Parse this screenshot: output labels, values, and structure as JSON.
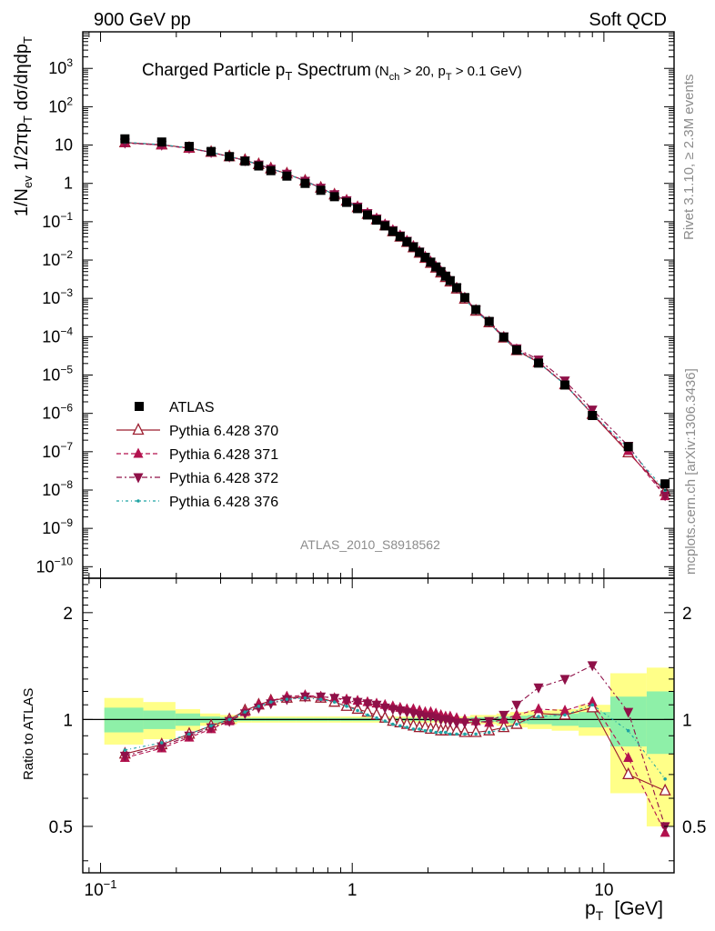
{
  "header": {
    "left": "900 GeV pp",
    "right": "Soft QCD"
  },
  "side": {
    "rivet": "Rivet 3.1.10, ≥ 2.3M events",
    "mcplots": "mcplots.cern.ch [arXiv:1306.3436]"
  },
  "watermark": "ATLAS_2010_S8918562",
  "colors": {
    "atlas": "#000000",
    "p370": "#9c1c2e",
    "p371": "#b3124e",
    "p372": "#8f1048",
    "p376": "#1fa3a3",
    "band_yellow": "#ffff88",
    "band_green": "#8ef0a8"
  },
  "chart_data": [
    {
      "type": "line",
      "title": "Charged Particle pT Spectrum",
      "title_parts": {
        "main": "Charged Particle p",
        "main_sub": "T",
        "main_tail": " Spectrum",
        "cond": "(N",
        "cond_sub1": "ch",
        "cond_mid": " > 20, p",
        "cond_sub2": "T",
        "cond_tail": " > 0.1 GeV)"
      },
      "ylabel": "1/Nev 1/2πpT dσ/dηdpT",
      "ylabel_parts": {
        "a": "1/N",
        "a_sub": "ev",
        "b": " 1/2πp",
        "b_sub": "T",
        "c": " dσ/dηdp",
        "c_sub": "T"
      },
      "xscale": "log",
      "yscale": "log",
      "xlim": [
        0.085,
        19
      ],
      "ylim": [
        5e-11,
        9000
      ],
      "yticks": [
        {
          "v": 1e-10,
          "base": "10",
          "exp": "−10"
        },
        {
          "v": 1e-09,
          "base": "10",
          "exp": "−9"
        },
        {
          "v": 1e-08,
          "base": "10",
          "exp": "−8"
        },
        {
          "v": 1e-07,
          "base": "10",
          "exp": "−7"
        },
        {
          "v": 1e-06,
          "base": "10",
          "exp": "−6"
        },
        {
          "v": 1e-05,
          "base": "10",
          "exp": "−5"
        },
        {
          "v": 0.0001,
          "base": "10",
          "exp": "−4"
        },
        {
          "v": 0.001,
          "base": "10",
          "exp": "−3"
        },
        {
          "v": 0.01,
          "base": "10",
          "exp": "−2"
        },
        {
          "v": 0.1,
          "base": "10",
          "exp": "−1"
        },
        {
          "v": 1,
          "base": "1",
          "exp": ""
        },
        {
          "v": 10,
          "base": "10",
          "exp": ""
        },
        {
          "v": 100,
          "base": "10",
          "exp": "2"
        },
        {
          "v": 1000,
          "base": "10",
          "exp": "3"
        }
      ],
      "legend": {
        "placement": "bottom-left",
        "entries": [
          "ATLAS",
          "Pythia 6.428 370",
          "Pythia 6.428 371",
          "Pythia 6.428 372",
          "Pythia 6.428 376"
        ]
      },
      "x": [
        0.125,
        0.175,
        0.225,
        0.275,
        0.325,
        0.375,
        0.425,
        0.475,
        0.55,
        0.65,
        0.75,
        0.85,
        0.95,
        1.05,
        1.15,
        1.25,
        1.35,
        1.45,
        1.55,
        1.65,
        1.75,
        1.85,
        1.95,
        2.05,
        2.15,
        2.25,
        2.35,
        2.45,
        2.6,
        2.8,
        3.1,
        3.5,
        4.0,
        4.5,
        5.5,
        7.0,
        9.0,
        12.5,
        17.5
      ],
      "atlas": [
        14.5,
        12.0,
        9.2,
        6.8,
        5.0,
        3.8,
        2.85,
        2.15,
        1.55,
        1.0,
        0.66,
        0.45,
        0.32,
        0.22,
        0.15,
        0.11,
        0.078,
        0.056,
        0.041,
        0.03,
        0.022,
        0.016,
        0.0118,
        0.0088,
        0.0066,
        0.005,
        0.0038,
        0.0029,
        0.0019,
        0.00105,
        0.00051,
        0.00025,
        9.8e-05,
        4.5e-05,
        2.05e-05,
        5.5e-06,
        8.8e-07,
        1.35e-07,
        1.45e-08
      ],
      "series": [
        {
          "name": "Pythia 6.428 370",
          "ratio": [
            0.8,
            0.85,
            0.91,
            0.96,
            1.0,
            1.06,
            1.1,
            1.13,
            1.15,
            1.16,
            1.15,
            1.12,
            1.09,
            1.07,
            1.05,
            1.03,
            1.01,
            0.99,
            0.98,
            0.97,
            0.96,
            0.95,
            0.95,
            0.94,
            0.94,
            0.93,
            0.93,
            0.93,
            0.93,
            0.92,
            0.92,
            0.93,
            0.95,
            0.97,
            1.04,
            1.03,
            1.08,
            0.7,
            0.63
          ]
        },
        {
          "name": "Pythia 6.428 371",
          "ratio": [
            0.78,
            0.83,
            0.89,
            0.94,
            0.99,
            1.05,
            1.1,
            1.13,
            1.16,
            1.17,
            1.16,
            1.15,
            1.14,
            1.13,
            1.12,
            1.11,
            1.1,
            1.09,
            1.08,
            1.07,
            1.07,
            1.06,
            1.05,
            1.05,
            1.04,
            1.03,
            1.02,
            1.02,
            1.01,
            1.0,
            0.99,
            0.98,
            1.0,
            1.03,
            1.07,
            1.06,
            1.12,
            0.78,
            0.48
          ]
        },
        {
          "name": "Pythia 6.428 372",
          "ratio": [
            0.79,
            0.84,
            0.9,
            0.95,
            0.99,
            1.04,
            1.08,
            1.11,
            1.14,
            1.16,
            1.16,
            1.15,
            1.13,
            1.12,
            1.11,
            1.1,
            1.08,
            1.07,
            1.06,
            1.05,
            1.04,
            1.03,
            1.02,
            1.02,
            1.01,
            1.0,
            1.0,
            0.99,
            0.98,
            0.98,
            0.98,
            0.99,
            1.03,
            1.1,
            1.23,
            1.3,
            1.42,
            1.05,
            0.5
          ]
        },
        {
          "name": "Pythia 6.428 376",
          "ratio": [
            0.82,
            0.86,
            0.91,
            0.96,
            1.0,
            1.05,
            1.09,
            1.12,
            1.14,
            1.15,
            1.14,
            1.12,
            1.09,
            1.06,
            1.03,
            1.01,
            0.99,
            0.97,
            0.96,
            0.95,
            0.94,
            0.94,
            0.93,
            0.93,
            0.92,
            0.92,
            0.92,
            0.91,
            0.91,
            0.91,
            0.91,
            0.92,
            0.94,
            0.97,
            1.02,
            1.03,
            1.1,
            0.93,
            0.68
          ]
        }
      ]
    },
    {
      "type": "line",
      "title": "",
      "ylabel": "Ratio to ATLAS",
      "xlabel": "pT [GeV]",
      "xlabel_parts": {
        "p": "p",
        "sub": "T",
        "unit": "[GeV]"
      },
      "xscale": "log",
      "yscale": "log",
      "xlim": [
        0.085,
        19
      ],
      "ylim": [
        0.37,
        2.5
      ],
      "yticks_left": [
        {
          "v": 0.5,
          "label": "0.5"
        },
        {
          "v": 1,
          "label": "1"
        },
        {
          "v": 2,
          "label": "2"
        }
      ],
      "yticks_right": [
        {
          "v": 0.5,
          "label": "0.5"
        },
        {
          "v": 1,
          "label": "1"
        },
        {
          "v": 2,
          "label": "2"
        }
      ],
      "xticks": [
        {
          "v": 0.1,
          "base": "10",
          "exp": "−1"
        },
        {
          "v": 1,
          "base": "1",
          "exp": ""
        },
        {
          "v": 10,
          "base": "10",
          "exp": ""
        }
      ],
      "band_yellow": [
        [
          0.85,
          1.15
        ],
        [
          0.88,
          1.12
        ],
        [
          0.93,
          1.07
        ],
        [
          0.96,
          1.04
        ],
        [
          0.97,
          1.03
        ],
        [
          0.98,
          1.02
        ],
        [
          0.98,
          1.02
        ],
        [
          0.98,
          1.02
        ],
        [
          0.98,
          1.02
        ],
        [
          0.98,
          1.02
        ],
        [
          0.98,
          1.02
        ],
        [
          0.98,
          1.02
        ],
        [
          0.98,
          1.02
        ],
        [
          0.98,
          1.02
        ],
        [
          0.98,
          1.02
        ],
        [
          0.98,
          1.02
        ],
        [
          0.98,
          1.02
        ],
        [
          0.98,
          1.02
        ],
        [
          0.98,
          1.02
        ],
        [
          0.98,
          1.02
        ],
        [
          0.98,
          1.02
        ],
        [
          0.98,
          1.02
        ],
        [
          0.98,
          1.02
        ],
        [
          0.98,
          1.02
        ],
        [
          0.98,
          1.02
        ],
        [
          0.98,
          1.02
        ],
        [
          0.98,
          1.02
        ],
        [
          0.98,
          1.02
        ],
        [
          0.98,
          1.02
        ],
        [
          0.98,
          1.02
        ],
        [
          0.97,
          1.03
        ],
        [
          0.97,
          1.03
        ],
        [
          0.96,
          1.04
        ],
        [
          0.95,
          1.05
        ],
        [
          0.94,
          1.06
        ],
        [
          0.93,
          1.07
        ],
        [
          0.9,
          1.1
        ],
        [
          0.62,
          1.35
        ],
        [
          0.5,
          1.4
        ]
      ],
      "band_green": [
        [
          0.92,
          1.08
        ],
        [
          0.94,
          1.06
        ],
        [
          0.96,
          1.04
        ],
        [
          0.98,
          1.02
        ],
        [
          0.985,
          1.015
        ],
        [
          0.99,
          1.01
        ],
        [
          0.99,
          1.01
        ],
        [
          0.99,
          1.01
        ],
        [
          0.99,
          1.01
        ],
        [
          0.99,
          1.01
        ],
        [
          0.99,
          1.01
        ],
        [
          0.99,
          1.01
        ],
        [
          0.99,
          1.01
        ],
        [
          0.99,
          1.01
        ],
        [
          0.99,
          1.01
        ],
        [
          0.99,
          1.01
        ],
        [
          0.99,
          1.01
        ],
        [
          0.99,
          1.01
        ],
        [
          0.99,
          1.01
        ],
        [
          0.99,
          1.01
        ],
        [
          0.99,
          1.01
        ],
        [
          0.99,
          1.01
        ],
        [
          0.99,
          1.01
        ],
        [
          0.99,
          1.01
        ],
        [
          0.99,
          1.01
        ],
        [
          0.99,
          1.01
        ],
        [
          0.99,
          1.01
        ],
        [
          0.99,
          1.01
        ],
        [
          0.99,
          1.01
        ],
        [
          0.99,
          1.01
        ],
        [
          0.985,
          1.015
        ],
        [
          0.985,
          1.015
        ],
        [
          0.98,
          1.02
        ],
        [
          0.975,
          1.025
        ],
        [
          0.97,
          1.03
        ],
        [
          0.96,
          1.04
        ],
        [
          0.95,
          1.05
        ],
        [
          0.84,
          1.16
        ],
        [
          0.8,
          1.2
        ]
      ]
    }
  ]
}
